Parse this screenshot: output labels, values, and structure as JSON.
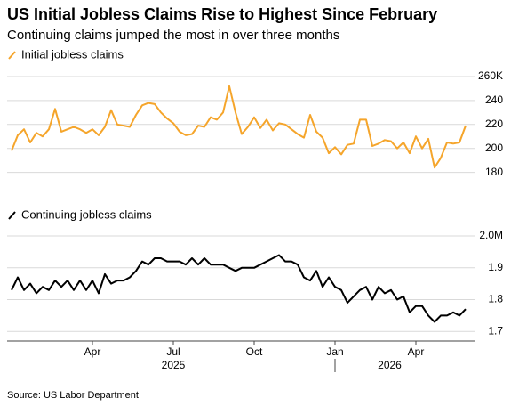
{
  "title": "US Initial Jobless Claims Rise to Highest Since February",
  "subtitle": "Continuing claims jumped the most in over three months",
  "source": "Source: US Labor Department",
  "chart_data": [
    {
      "type": "line",
      "series": [
        {
          "name": "Initial jobless claims",
          "color": "#f5a52b",
          "values": [
            198,
            211,
            216,
            205,
            213,
            210,
            216,
            233,
            214,
            216,
            218,
            216,
            213,
            216,
            211,
            218,
            232,
            220,
            219,
            218,
            228,
            236,
            238,
            237,
            230,
            225,
            221,
            214,
            211,
            212,
            219,
            218,
            226,
            224,
            230,
            252,
            230,
            212,
            218,
            226,
            217,
            224,
            215,
            221,
            220,
            216,
            212,
            209,
            228,
            214,
            209,
            196,
            201,
            195,
            203,
            204,
            224,
            224,
            202,
            204,
            207,
            206,
            200,
            205,
            196,
            210,
            200,
            208,
            184,
            192,
            205,
            204,
            205,
            219
          ]
        }
      ],
      "ylim": [
        173,
        260
      ],
      "yticks": [
        180,
        200,
        220,
        240,
        {
          "value": 260,
          "label": "260K"
        }
      ],
      "grid": true
    },
    {
      "type": "line",
      "series": [
        {
          "name": "Continuing jobless claims",
          "color": "#000000",
          "values": [
            1.83,
            1.87,
            1.83,
            1.85,
            1.82,
            1.84,
            1.83,
            1.86,
            1.84,
            1.86,
            1.83,
            1.86,
            1.83,
            1.86,
            1.82,
            1.88,
            1.85,
            1.86,
            1.86,
            1.87,
            1.89,
            1.92,
            1.91,
            1.93,
            1.93,
            1.92,
            1.92,
            1.92,
            1.91,
            1.93,
            1.91,
            1.93,
            1.91,
            1.91,
            1.91,
            1.9,
            1.89,
            1.9,
            1.9,
            1.9,
            1.91,
            1.92,
            1.93,
            1.94,
            1.92,
            1.92,
            1.91,
            1.87,
            1.86,
            1.89,
            1.84,
            1.87,
            1.84,
            1.83,
            1.79,
            1.81,
            1.83,
            1.84,
            1.8,
            1.84,
            1.82,
            1.83,
            1.8,
            1.81,
            1.76,
            1.78,
            1.78,
            1.75,
            1.73,
            1.75,
            1.75,
            1.76,
            1.75,
            1.77
          ]
        }
      ],
      "ylim": [
        1.67,
        2.0
      ],
      "yticks": [
        1.7,
        1.8,
        1.9,
        {
          "value": 2,
          "label": "2.0M"
        }
      ],
      "grid": true,
      "categories": [
        null,
        null,
        null,
        null,
        null,
        null,
        null,
        null,
        null,
        null,
        null,
        null,
        null,
        "Apr",
        null,
        null,
        null,
        null,
        null,
        null,
        null,
        null,
        null,
        null,
        null,
        null,
        "Jul",
        null,
        null,
        null,
        null,
        null,
        null,
        null,
        null,
        null,
        null,
        null,
        null,
        "Oct",
        null,
        null,
        null,
        null,
        null,
        null,
        null,
        null,
        null,
        null,
        null,
        null,
        "Jan",
        null,
        null,
        null,
        null,
        null,
        null,
        null,
        null,
        null,
        null,
        null,
        null,
        "Apr",
        null,
        null,
        null,
        null,
        null,
        null,
        null,
        null
      ],
      "years": [
        "2025",
        "2026"
      ]
    }
  ]
}
